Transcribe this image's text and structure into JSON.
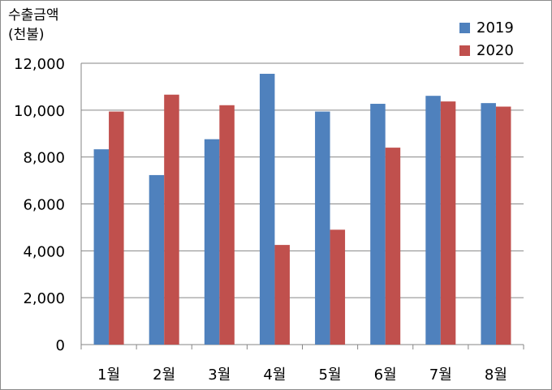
{
  "chart_data": {
    "type": "bar",
    "ylabel": "수출금액",
    "ylabel_unit": "(천불)",
    "categories": [
      "1월",
      "2월",
      "3월",
      "4월",
      "5월",
      "6월",
      "7월",
      "8월"
    ],
    "series": [
      {
        "name": "2019",
        "color": "#4f81bd",
        "values": [
          8330,
          7230,
          8760,
          11550,
          9940,
          10270,
          10610,
          10300
        ]
      },
      {
        "name": "2020",
        "color": "#c0504d",
        "values": [
          9940,
          10660,
          10210,
          4250,
          4900,
          8400,
          10370,
          10150
        ]
      }
    ],
    "yticks": [
      "0",
      "2,000",
      "4,000",
      "6,000",
      "8,000",
      "10,000",
      "12,000"
    ],
    "ylim": [
      0,
      12000
    ],
    "grid": true,
    "legend": "top-right"
  }
}
